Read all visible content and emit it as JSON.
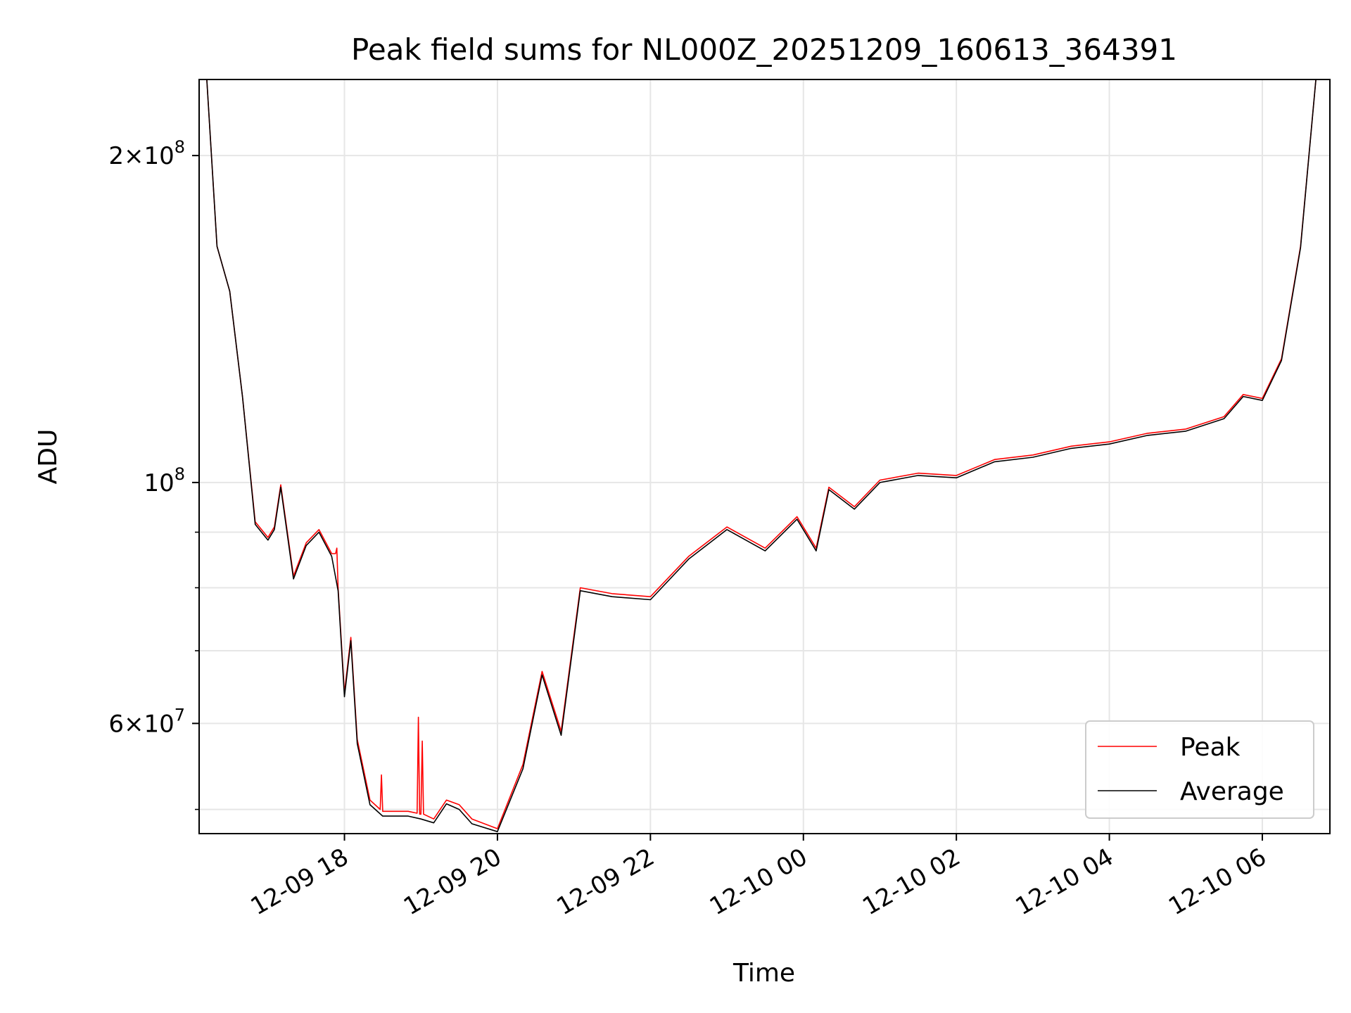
{
  "chart_data": {
    "type": "line",
    "title": "Peak field sums for NL000Z_20251209_160613_364391",
    "xlabel": "Time",
    "ylabel": "ADU",
    "yscale": "log",
    "ylim": [
      47500000,
      235000000
    ],
    "xlim": [
      "2025-12-09 16:06",
      "2025-12-10 06:53"
    ],
    "grid": true,
    "legend": "lower right",
    "x_ticks": [
      {
        "t": "2025-12-09 18:00",
        "label": "12-09 18"
      },
      {
        "t": "2025-12-09 20:00",
        "label": "12-09 20"
      },
      {
        "t": "2025-12-09 22:00",
        "label": "12-09 22"
      },
      {
        "t": "2025-12-10 00:00",
        "label": "12-10 00"
      },
      {
        "t": "2025-12-10 02:00",
        "label": "12-10 02"
      },
      {
        "t": "2025-12-10 04:00",
        "label": "12-10 04"
      },
      {
        "t": "2025-12-10 06:00",
        "label": "12-10 06"
      }
    ],
    "y_ticks_major": [
      {
        "v": 200000000,
        "mant": "2",
        "exp": "8"
      },
      {
        "v": 100000000,
        "mant": "",
        "exp": "8"
      },
      {
        "v": 60000000,
        "mant": "6",
        "exp": "7"
      }
    ],
    "y_ticks_minor": [
      50000000,
      70000000,
      80000000,
      90000000
    ],
    "series": [
      {
        "name": "Peak",
        "color": "#ff0000",
        "points": [
          [
            "2025-12-09 16:12",
            235000000
          ],
          [
            "2025-12-09 16:20",
            165000000
          ],
          [
            "2025-12-09 16:30",
            150000000
          ],
          [
            "2025-12-09 16:40",
            120000000
          ],
          [
            "2025-12-09 16:50",
            92000000
          ],
          [
            "2025-12-09 17:00",
            89000000
          ],
          [
            "2025-12-09 17:05",
            91000000
          ],
          [
            "2025-12-09 17:10",
            99500000
          ],
          [
            "2025-12-09 17:20",
            82000000
          ],
          [
            "2025-12-09 17:30",
            88000000
          ],
          [
            "2025-12-09 17:40",
            90500000
          ],
          [
            "2025-12-09 17:50",
            86000000
          ],
          [
            "2025-12-09 17:53",
            86000000
          ],
          [
            "2025-12-09 17:54",
            87000000
          ],
          [
            "2025-12-09 17:55",
            80000000
          ],
          [
            "2025-12-09 18:00",
            64000000
          ],
          [
            "2025-12-09 18:05",
            72000000
          ],
          [
            "2025-12-09 18:10",
            58000000
          ],
          [
            "2025-12-09 18:20",
            51000000
          ],
          [
            "2025-12-09 18:28",
            50000000
          ],
          [
            "2025-12-09 18:29",
            53800000
          ],
          [
            "2025-12-09 18:30",
            49800000
          ],
          [
            "2025-12-09 18:50",
            49800000
          ],
          [
            "2025-12-09 18:57",
            49600000
          ],
          [
            "2025-12-09 18:58",
            60800000
          ],
          [
            "2025-12-09 18:59",
            49500000
          ],
          [
            "2025-12-09 19:00",
            49500000
          ],
          [
            "2025-12-09 19:01",
            57800000
          ],
          [
            "2025-12-09 19:02",
            49500000
          ],
          [
            "2025-12-09 19:10",
            49000000
          ],
          [
            "2025-12-09 19:20",
            51000000
          ],
          [
            "2025-12-09 19:30",
            50500000
          ],
          [
            "2025-12-09 19:40",
            49000000
          ],
          [
            "2025-12-09 20:00",
            48000000
          ],
          [
            "2025-12-09 20:20",
            55000000
          ],
          [
            "2025-12-09 20:35",
            67000000
          ],
          [
            "2025-12-09 20:50",
            59000000
          ],
          [
            "2025-12-09 21:05",
            80000000
          ],
          [
            "2025-12-09 21:30",
            79000000
          ],
          [
            "2025-12-09 22:00",
            78500000
          ],
          [
            "2025-12-09 22:30",
            85500000
          ],
          [
            "2025-12-09 23:00",
            91000000
          ],
          [
            "2025-12-09 23:30",
            87000000
          ],
          [
            "2025-12-09 23:55",
            93000000
          ],
          [
            "2025-12-10 00:10",
            87000000
          ],
          [
            "2025-12-10 00:20",
            99000000
          ],
          [
            "2025-12-10 00:40",
            95000000
          ],
          [
            "2025-12-10 01:00",
            100500000
          ],
          [
            "2025-12-10 01:30",
            102000000
          ],
          [
            "2025-12-10 02:00",
            101500000
          ],
          [
            "2025-12-10 02:30",
            105000000
          ],
          [
            "2025-12-10 03:00",
            106000000
          ],
          [
            "2025-12-10 03:30",
            108000000
          ],
          [
            "2025-12-10 04:00",
            109000000
          ],
          [
            "2025-12-10 04:30",
            111000000
          ],
          [
            "2025-12-10 05:00",
            112000000
          ],
          [
            "2025-12-10 05:30",
            115000000
          ],
          [
            "2025-12-10 05:45",
            120500000
          ],
          [
            "2025-12-10 06:00",
            119500000
          ],
          [
            "2025-12-10 06:15",
            130000000
          ],
          [
            "2025-12-10 06:30",
            165000000
          ],
          [
            "2025-12-10 06:42",
            235000000
          ]
        ]
      },
      {
        "name": "Average",
        "color": "#000000",
        "points": [
          [
            "2025-12-09 16:12",
            235000000
          ],
          [
            "2025-12-09 16:20",
            165000000
          ],
          [
            "2025-12-09 16:30",
            150000000
          ],
          [
            "2025-12-09 16:40",
            120000000
          ],
          [
            "2025-12-09 16:50",
            91500000
          ],
          [
            "2025-12-09 17:00",
            88500000
          ],
          [
            "2025-12-09 17:05",
            90500000
          ],
          [
            "2025-12-09 17:10",
            99000000
          ],
          [
            "2025-12-09 17:20",
            81500000
          ],
          [
            "2025-12-09 17:30",
            87500000
          ],
          [
            "2025-12-09 17:40",
            90000000
          ],
          [
            "2025-12-09 17:50",
            85500000
          ],
          [
            "2025-12-09 17:55",
            79500000
          ],
          [
            "2025-12-09 18:00",
            63500000
          ],
          [
            "2025-12-09 18:05",
            71500000
          ],
          [
            "2025-12-09 18:10",
            57500000
          ],
          [
            "2025-12-09 18:20",
            50500000
          ],
          [
            "2025-12-09 18:30",
            49300000
          ],
          [
            "2025-12-09 18:50",
            49300000
          ],
          [
            "2025-12-09 19:00",
            49000000
          ],
          [
            "2025-12-09 19:10",
            48600000
          ],
          [
            "2025-12-09 19:20",
            50600000
          ],
          [
            "2025-12-09 19:30",
            50000000
          ],
          [
            "2025-12-09 19:40",
            48500000
          ],
          [
            "2025-12-09 20:00",
            47700000
          ],
          [
            "2025-12-09 20:20",
            54500000
          ],
          [
            "2025-12-09 20:35",
            66500000
          ],
          [
            "2025-12-09 20:50",
            58500000
          ],
          [
            "2025-12-09 21:05",
            79500000
          ],
          [
            "2025-12-09 21:30",
            78500000
          ],
          [
            "2025-12-09 22:00",
            78000000
          ],
          [
            "2025-12-09 22:30",
            85000000
          ],
          [
            "2025-12-09 23:00",
            90500000
          ],
          [
            "2025-12-09 23:30",
            86500000
          ],
          [
            "2025-12-09 23:55",
            92500000
          ],
          [
            "2025-12-10 00:10",
            86500000
          ],
          [
            "2025-12-10 00:20",
            98500000
          ],
          [
            "2025-12-10 00:40",
            94500000
          ],
          [
            "2025-12-10 01:00",
            100000000
          ],
          [
            "2025-12-10 01:30",
            101500000
          ],
          [
            "2025-12-10 02:00",
            101000000
          ],
          [
            "2025-12-10 02:30",
            104500000
          ],
          [
            "2025-12-10 03:00",
            105500000
          ],
          [
            "2025-12-10 03:30",
            107500000
          ],
          [
            "2025-12-10 04:00",
            108500000
          ],
          [
            "2025-12-10 04:30",
            110500000
          ],
          [
            "2025-12-10 05:00",
            111500000
          ],
          [
            "2025-12-10 05:30",
            114500000
          ],
          [
            "2025-12-10 05:45",
            120000000
          ],
          [
            "2025-12-10 06:00",
            119000000
          ],
          [
            "2025-12-10 06:15",
            129500000
          ],
          [
            "2025-12-10 06:30",
            164500000
          ],
          [
            "2025-12-10 06:42",
            235000000
          ]
        ]
      }
    ]
  }
}
